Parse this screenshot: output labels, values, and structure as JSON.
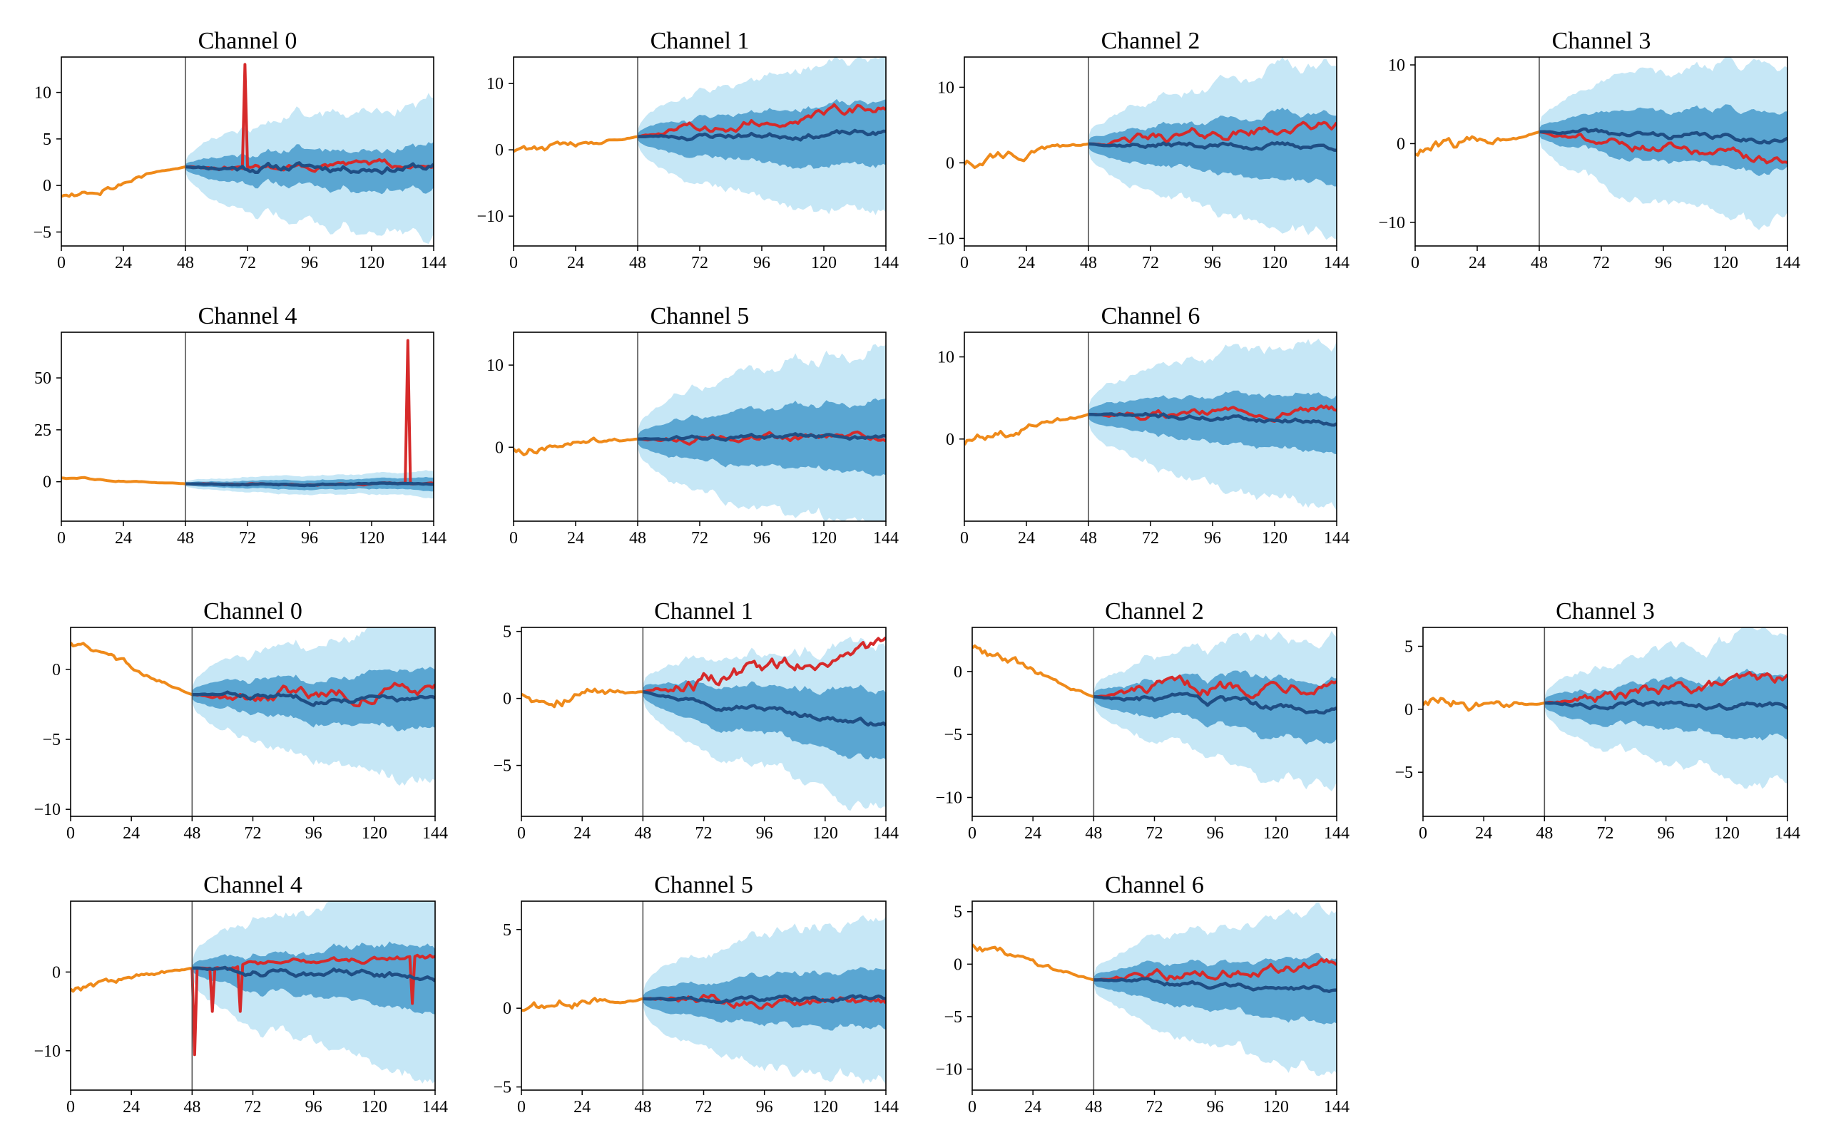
{
  "colors": {
    "history": "#ef8a1a",
    "ground_truth": "#d62a2a",
    "median": "#1f4e84",
    "band_inner": "#5aa6d2",
    "band_outer": "#c6e7f6",
    "divider": "#555555",
    "axis": "#000000"
  },
  "chart_data": [
    {
      "type": "line",
      "title": "Channel 0",
      "x_ticks": [
        0,
        24,
        48,
        72,
        96,
        120,
        144
      ],
      "y_ticks": [
        -5,
        0,
        5,
        10
      ],
      "xlim": [
        0,
        144
      ],
      "ylim": [
        -6.5,
        13.8
      ],
      "split": 48,
      "hist_start": -1,
      "hist_end": 2,
      "hist_amp": 0.7,
      "median_end": 2,
      "median_amp": 0.6,
      "truth_end": 2,
      "truth_amp": 0.5,
      "inner_start": 0.3,
      "inner_end": 2.5,
      "outer_start": 0.6,
      "outer_end": 7.5,
      "spikes": [
        [
          71,
          13
        ]
      ],
      "seed": 11
    },
    {
      "type": "line",
      "title": "Channel 1",
      "x_ticks": [
        0,
        24,
        48,
        72,
        96,
        120,
        144
      ],
      "y_ticks": [
        -10,
        0,
        10
      ],
      "xlim": [
        0,
        144
      ],
      "ylim": [
        -14.5,
        14
      ],
      "split": 48,
      "hist_start": 0,
      "hist_end": 2,
      "hist_amp": 1.0,
      "median_end": 2.5,
      "median_amp": 0.6,
      "truth_end": 6.5,
      "truth_amp": 1.0,
      "inner_start": 0.5,
      "inner_end": 5,
      "outer_start": 1,
      "outer_end": 12,
      "spikes": [],
      "seed": 23
    },
    {
      "type": "line",
      "title": "Channel 2",
      "x_ticks": [
        0,
        24,
        48,
        72,
        96,
        120,
        144
      ],
      "y_ticks": [
        -10,
        0,
        10
      ],
      "xlim": [
        0,
        144
      ],
      "ylim": [
        -11,
        14
      ],
      "split": 48,
      "hist_start": 0,
      "hist_end": 2.5,
      "hist_amp": 1.0,
      "median_end": 2.2,
      "median_amp": 0.5,
      "truth_end": 5,
      "truth_amp": 0.9,
      "inner_start": 0.5,
      "inner_end": 4.5,
      "outer_start": 1,
      "outer_end": 11,
      "spikes": [],
      "seed": 37
    },
    {
      "type": "line",
      "title": "Channel 3",
      "x_ticks": [
        0,
        24,
        48,
        72,
        96,
        120,
        144
      ],
      "y_ticks": [
        -10,
        0,
        10
      ],
      "xlim": [
        0,
        144
      ],
      "ylim": [
        -13,
        11
      ],
      "split": 48,
      "hist_start": -1,
      "hist_end": 1.5,
      "hist_amp": 1.2,
      "median_end": 0.5,
      "median_amp": 0.5,
      "truth_end": -2.5,
      "truth_amp": 0.8,
      "inner_start": 0.5,
      "inner_end": 4,
      "outer_start": 1,
      "outer_end": 10.5,
      "spikes": [],
      "seed": 41
    },
    {
      "type": "line",
      "title": "Channel 4",
      "x_ticks": [
        0,
        24,
        48,
        72,
        96,
        120,
        144
      ],
      "y_ticks": [
        0,
        25,
        50
      ],
      "xlim": [
        0,
        144
      ],
      "ylim": [
        -19,
        72
      ],
      "split": 48,
      "hist_start": 2,
      "hist_end": -1,
      "hist_amp": 0.6,
      "median_end": -1,
      "median_amp": 0.5,
      "truth_end": -1,
      "truth_amp": 0.4,
      "inner_start": 0.5,
      "inner_end": 3,
      "outer_start": 1,
      "outer_end": 6,
      "spikes": [
        [
          134,
          68
        ]
      ],
      "seed": 53
    },
    {
      "type": "line",
      "title": "Channel 5",
      "x_ticks": [
        0,
        24,
        48,
        72,
        96,
        120,
        144
      ],
      "y_ticks": [
        0,
        10
      ],
      "xlim": [
        0,
        144
      ],
      "ylim": [
        -9,
        14
      ],
      "split": 48,
      "hist_start": 0,
      "hist_end": 1,
      "hist_amp": 0.9,
      "median_end": 1.3,
      "median_amp": 0.4,
      "truth_end": 1.3,
      "truth_amp": 0.6,
      "inner_start": 0.5,
      "inner_end": 4.5,
      "outer_start": 1,
      "outer_end": 11,
      "spikes": [],
      "seed": 61
    },
    {
      "type": "line",
      "title": "Channel 6",
      "x_ticks": [
        0,
        24,
        48,
        72,
        96,
        120,
        144
      ],
      "y_ticks": [
        0,
        10
      ],
      "xlim": [
        0,
        144
      ],
      "ylim": [
        -10,
        13
      ],
      "split": 48,
      "hist_start": -0.5,
      "hist_end": 3,
      "hist_amp": 0.9,
      "median_end": 2.2,
      "median_amp": 0.4,
      "truth_end": 3.5,
      "truth_amp": 0.6,
      "inner_start": 0.5,
      "inner_end": 3.5,
      "outer_start": 1,
      "outer_end": 10,
      "spikes": [],
      "seed": 71
    },
    {
      "type": "line",
      "title": "Channel 0",
      "x_ticks": [
        0,
        24,
        48,
        72,
        96,
        120,
        144
      ],
      "y_ticks": [
        -10,
        -5,
        0
      ],
      "xlim": [
        0,
        144
      ],
      "ylim": [
        -10.5,
        3
      ],
      "split": 48,
      "hist_start": 2,
      "hist_end": -1.8,
      "hist_amp": 0.4,
      "median_end": -2.2,
      "median_amp": 0.3,
      "truth_end": -1.5,
      "truth_amp": 0.6,
      "inner_start": 0.3,
      "inner_end": 2,
      "outer_start": 0.5,
      "outer_end": 5.5,
      "spikes": [],
      "seed": 83
    },
    {
      "type": "line",
      "title": "Channel 1",
      "x_ticks": [
        0,
        24,
        48,
        72,
        96,
        120,
        144
      ],
      "y_ticks": [
        -5,
        0,
        5
      ],
      "xlim": [
        0,
        144
      ],
      "ylim": [
        -8.8,
        5.3
      ],
      "split": 48,
      "hist_start": 0.5,
      "hist_end": 0.5,
      "hist_amp": 0.8,
      "median_end": -2,
      "median_amp": 0.3,
      "truth_end": 4,
      "truth_amp": 0.8,
      "inner_start": 0.3,
      "inner_end": 2.5,
      "outer_start": 0.5,
      "outer_end": 6,
      "spikes": [],
      "seed": 97
    },
    {
      "type": "line",
      "title": "Channel 2",
      "x_ticks": [
        0,
        24,
        48,
        72,
        96,
        120,
        144
      ],
      "y_ticks": [
        -10,
        -5,
        0
      ],
      "xlim": [
        0,
        144
      ],
      "ylim": [
        -11.5,
        3.5
      ],
      "split": 48,
      "hist_start": 2,
      "hist_end": -2,
      "hist_amp": 0.6,
      "median_end": -3.2,
      "median_amp": 0.4,
      "truth_end": -0.5,
      "truth_amp": 0.7,
      "inner_start": 0.3,
      "inner_end": 2.5,
      "outer_start": 0.5,
      "outer_end": 6,
      "spikes": [],
      "seed": 103
    },
    {
      "type": "line",
      "title": "Channel 3",
      "x_ticks": [
        0,
        24,
        48,
        72,
        96,
        120,
        144
      ],
      "y_ticks": [
        -5,
        0,
        5
      ],
      "xlim": [
        0,
        144
      ],
      "ylim": [
        -8.5,
        6.5
      ],
      "split": 48,
      "hist_start": 0.5,
      "hist_end": 0.5,
      "hist_amp": 0.8,
      "median_end": 0.2,
      "median_amp": 0.3,
      "truth_end": 2.5,
      "truth_amp": 0.6,
      "inner_start": 0.3,
      "inner_end": 2.5,
      "outer_start": 0.5,
      "outer_end": 6,
      "spikes": [],
      "seed": 113
    },
    {
      "type": "line",
      "title": "Channel 4",
      "x_ticks": [
        0,
        24,
        48,
        72,
        96,
        120,
        144
      ],
      "y_ticks": [
        -10,
        0
      ],
      "xlim": [
        0,
        144
      ],
      "ylim": [
        -15,
        9
      ],
      "split": 48,
      "hist_start": -2,
      "hist_end": 0.5,
      "hist_amp": 0.8,
      "median_end": -0.5,
      "median_amp": 0.6,
      "truth_end": 2,
      "truth_amp": 0.5,
      "inner_start": 0.3,
      "inner_end": 4,
      "outer_start": 0.8,
      "outer_end": 12,
      "spikes": [
        [
          49,
          -10.5
        ],
        [
          56,
          -5
        ],
        [
          67,
          -5
        ],
        [
          135,
          -4
        ]
      ],
      "seed": 127
    },
    {
      "type": "line",
      "title": "Channel 5",
      "x_ticks": [
        0,
        24,
        48,
        72,
        96,
        120,
        144
      ],
      "y_ticks": [
        -5,
        0,
        5
      ],
      "xlim": [
        0,
        144
      ],
      "ylim": [
        -5.2,
        6.8
      ],
      "split": 48,
      "hist_start": 0,
      "hist_end": 0.6,
      "hist_amp": 0.6,
      "median_end": 0.6,
      "median_amp": 0.2,
      "truth_end": 0.3,
      "truth_amp": 0.4,
      "inner_start": 0.2,
      "inner_end": 2,
      "outer_start": 0.4,
      "outer_end": 5.5,
      "spikes": [],
      "seed": 131
    },
    {
      "type": "line",
      "title": "Channel 6",
      "x_ticks": [
        0,
        24,
        48,
        72,
        96,
        120,
        144
      ],
      "y_ticks": [
        -10,
        -5,
        0,
        5
      ],
      "xlim": [
        0,
        144
      ],
      "ylim": [
        -12,
        6
      ],
      "split": 48,
      "hist_start": 2,
      "hist_end": -1.5,
      "hist_amp": 0.6,
      "median_end": -2.5,
      "median_amp": 0.3,
      "truth_end": 0,
      "truth_amp": 0.6,
      "inner_start": 0.3,
      "inner_end": 3,
      "outer_start": 0.5,
      "outer_end": 7.5,
      "spikes": [],
      "seed": 139
    }
  ]
}
